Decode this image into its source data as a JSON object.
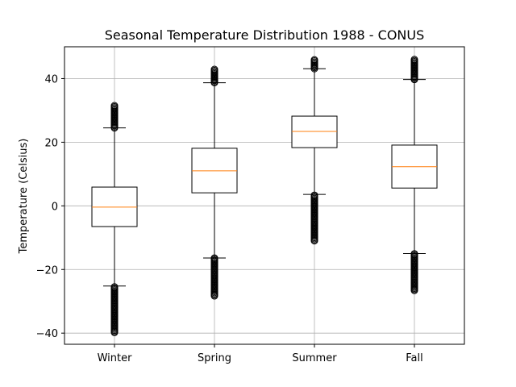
{
  "chart_data": {
    "type": "box",
    "title": "Seasonal Temperature Distribution 1988 - CONUS",
    "xlabel": "",
    "ylabel": "Temperature (Celsius)",
    "ylim": [
      -43.5,
      50
    ],
    "yticks": [
      -40,
      -20,
      0,
      20,
      40
    ],
    "ytick_labels": [
      "−40",
      "−20",
      "0",
      "20",
      "40"
    ],
    "grid": true,
    "categories": [
      "Winter",
      "Spring",
      "Summer",
      "Fall"
    ],
    "boxes": [
      {
        "name": "Winter",
        "whisker_low": -25.2,
        "q1": -6.5,
        "median": -0.4,
        "q3": 5.9,
        "whisker_high": 24.5,
        "outliers_low": [
          -25.2,
          -39.8
        ],
        "outliers_high": [
          24.5,
          31.5
        ]
      },
      {
        "name": "Spring",
        "whisker_low": -16.4,
        "q1": 4.1,
        "median": 11.0,
        "q3": 18.1,
        "whisker_high": 38.7,
        "outliers_low": [
          -16.4,
          -28.3
        ],
        "outliers_high": [
          38.7,
          43.2
        ]
      },
      {
        "name": "Summer",
        "whisker_low": 3.6,
        "q1": 18.3,
        "median": 23.4,
        "q3": 28.2,
        "whisker_high": 43.1,
        "outliers_low": [
          3.6,
          -11.0
        ],
        "outliers_high": [
          43.1,
          46.0
        ]
      },
      {
        "name": "Fall",
        "whisker_low": -15.0,
        "q1": 5.6,
        "median": 12.3,
        "q3": 19.1,
        "whisker_high": 39.7,
        "outliers_low": [
          -15.0,
          -26.6
        ],
        "outliers_high": [
          39.7,
          46.0
        ]
      }
    ],
    "colors": {
      "median": "#ff7f0e",
      "box": "#000000",
      "grid": "#b0b0b0"
    }
  }
}
